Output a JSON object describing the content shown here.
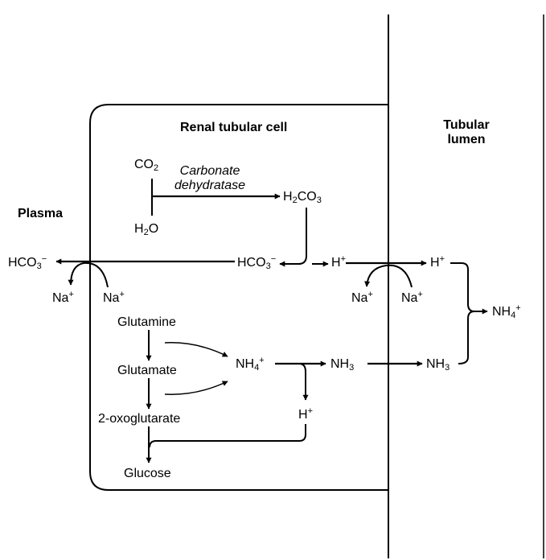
{
  "regions": {
    "cell": "Renal tubular cell",
    "plasma": "Plasma",
    "lumen_1": "Tubular",
    "lumen_2": "lumen"
  },
  "enzyme": {
    "line1": "Carbonate",
    "line2": "dehydratase"
  },
  "species": {
    "co2_base": "CO",
    "co2_sub": "2",
    "h2o_h": "H",
    "h2o_sub": "2",
    "h2o_o": "O",
    "h2co3_h": "H",
    "h2co3_sub1": "2",
    "h2co3_co": "CO",
    "h2co3_sub2": "3",
    "hco3_cell_base": "HCO",
    "hco3_cell_sub": "3",
    "hco3_cell_sup": "−",
    "hco3_plasma_base": "HCO",
    "hco3_plasma_sub": "3",
    "hco3_plasma_sup": "−",
    "h_cell_base": "H",
    "h_cell_sup": "+",
    "h_lumen_base": "H",
    "h_lumen_sup": "+",
    "na_plasma_out_base": "Na",
    "na_plasma_out_sup": "+",
    "na_plasma_in_base": "Na",
    "na_plasma_in_sup": "+",
    "na_lumen_in_base": "Na",
    "na_lumen_in_sup": "+",
    "na_lumen_out_base": "Na",
    "na_lumen_out_sup": "+",
    "glutamine": "Glutamine",
    "glutamate": "Glutamate",
    "oxoglutarate": "2-oxoglutarate",
    "glucose": "Glucose",
    "nh4_cell_base": "NH",
    "nh4_cell_sub": "4",
    "nh4_cell_sup": "+",
    "nh3_cell_base": "NH",
    "nh3_cell_sub": "3",
    "nh3_lumen_base": "NH",
    "nh3_lumen_sub": "3",
    "nh4_lumen_base": "NH",
    "nh4_lumen_sub": "4",
    "nh4_lumen_sup": "+",
    "h_glut_base": "H",
    "h_glut_sup": "+"
  }
}
